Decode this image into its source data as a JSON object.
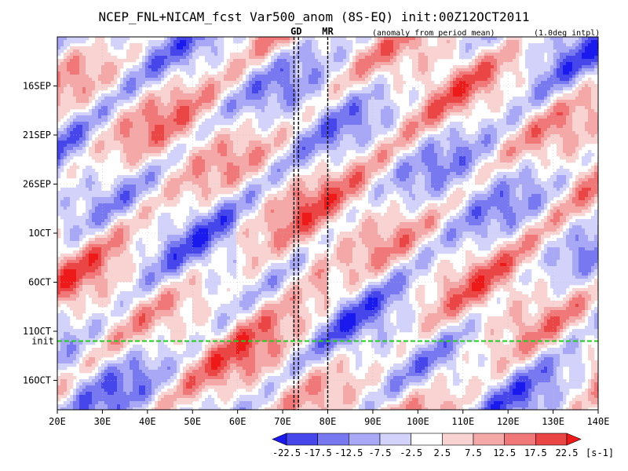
{
  "chart_data": {
    "type": "heatmap",
    "title": "NCEP_FNL+NICAM_fcst Var500_anom (8S-EQ) init:00Z12OCT2011",
    "subtitle_left": "(anomaly from period mean)",
    "subtitle_right": "(1.0deg intpl)",
    "xlabel": "",
    "ylabel": "",
    "xlim": [
      20,
      140
    ],
    "x_ticks": [
      20,
      30,
      40,
      50,
      60,
      70,
      80,
      90,
      100,
      110,
      120,
      130,
      140
    ],
    "x_tick_labels": [
      "20E",
      "30E",
      "40E",
      "50E",
      "60E",
      "70E",
      "80E",
      "90E",
      "100E",
      "110E",
      "120E",
      "130E",
      "140E"
    ],
    "y_ticks": [
      "2011-09-16",
      "2011-09-21",
      "2011-09-26",
      "2011-10-01",
      "2011-10-06",
      "2011-10-11",
      "2011-10-16"
    ],
    "y_tick_labels": [
      "16SEP",
      "21SEP",
      "26SEP",
      "1OCT",
      "6OCT",
      "11OCT",
      "16OCT"
    ],
    "ylim": [
      "2011-09-11",
      "2011-10-19"
    ],
    "y_direction": "time increases downward",
    "grid": true,
    "markers": [
      {
        "label": "GD",
        "x_from": 72.5,
        "x_to": 73.5,
        "color": "#cc0000"
      },
      {
        "label": "MR",
        "x": 80.0,
        "color": "#cc0000"
      }
    ],
    "init_line": {
      "label": "init",
      "date": "2011-10-12",
      "color": "#22cc22"
    },
    "colorbar": {
      "levels": [
        -22.5,
        -17.5,
        -12.5,
        -7.5,
        -2.5,
        2.5,
        7.5,
        12.5,
        17.5,
        22.5
      ],
      "level_labels": [
        "-22.5",
        "-17.5",
        "-12.5",
        "-7.5",
        "-2.5",
        "2.5",
        "7.5",
        "12.5",
        "17.5",
        "22.5"
      ],
      "colors": [
        "#1a1aee",
        "#4646ea",
        "#7878f0",
        "#a8a8f6",
        "#d2d2fb",
        "#ffffff",
        "#f9d2d2",
        "#f5a8a8",
        "#f07878",
        "#ea4646",
        "#ee1a1a"
      ],
      "units": "[s-1]",
      "extend": "both"
    }
  }
}
